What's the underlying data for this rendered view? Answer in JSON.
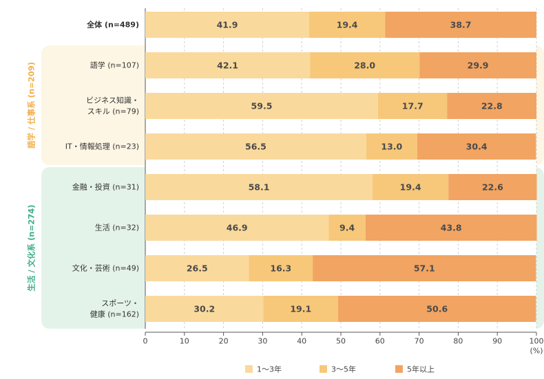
{
  "chart_data": {
    "type": "bar",
    "stacked": true,
    "orientation": "horizontal",
    "title": "",
    "xlabel": "",
    "ylabel": "",
    "xlim": [
      0,
      100
    ],
    "x_ticks": [
      "0",
      "10",
      "20",
      "30",
      "40",
      "50",
      "60",
      "70",
      "80",
      "90",
      "100"
    ],
    "x_unit": "(%)",
    "grid": true,
    "legend_position": "bottom",
    "categories": [
      {
        "label": "全体 (n=489)",
        "group": "total"
      },
      {
        "label": "語学 (n=107)",
        "group": "language"
      },
      {
        "label": "ビジネス知識・\nスキル (n=79)",
        "group": "language"
      },
      {
        "label": "IT・情報処理 (n=23)",
        "group": "language"
      },
      {
        "label": "金融・投資 (n=31)",
        "group": "life"
      },
      {
        "label": "生活 (n=32)",
        "group": "life"
      },
      {
        "label": "文化・芸術 (n=49)",
        "group": "life"
      },
      {
        "label": "スポーツ・\n健康 (n=162)",
        "group": "life"
      }
    ],
    "groups": {
      "language": {
        "label": "語学 / 仕事系 (n=209)",
        "text_color": "#f2b04d",
        "bg_color": "#fdf6e4"
      },
      "life": {
        "label": "生活 / 文化系 (n=274)",
        "text_color": "#3fae8c",
        "bg_color": "#e4f3ea"
      }
    },
    "series": [
      {
        "name": "1〜3年",
        "color": "#fad99c",
        "values": [
          41.9,
          42.1,
          59.5,
          56.5,
          58.1,
          46.9,
          26.5,
          30.2
        ]
      },
      {
        "name": "3〜5年",
        "color": "#f7c87a",
        "values": [
          19.4,
          28.0,
          17.7,
          13.0,
          19.4,
          9.4,
          16.3,
          19.1
        ]
      },
      {
        "name": "5年以上",
        "color": "#f2a462",
        "values": [
          38.7,
          29.9,
          22.8,
          30.4,
          22.6,
          43.8,
          57.1,
          50.6
        ]
      }
    ]
  }
}
